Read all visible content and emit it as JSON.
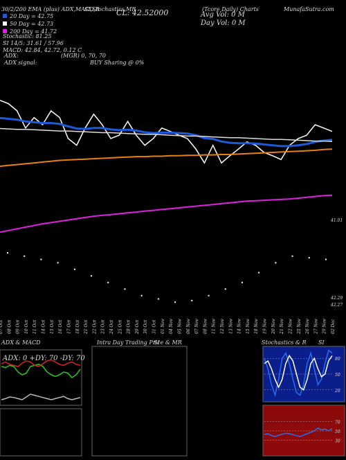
{
  "header": {
    "top_left": "30/2/200 EMA (plus) ADX,MACD,R",
    "top_mid": "SI,Stochastics,MR",
    "cl": "CL: 42.52000",
    "top_right": "(Tcore Daily) Charts",
    "site": "MunafaSutra.com",
    "avg_vol": "Avg Vol: 0  M",
    "day_vol": "Day Vol: 0  M",
    "price_labels": [
      "41.01",
      "42.29",
      "42.27"
    ]
  },
  "legend": [
    {
      "text": "20 Day = 42.75",
      "color": "#1a5adb"
    },
    {
      "text": "50 Day = 42.73",
      "color": "#ffffff"
    },
    {
      "text": "200 Day = 41.72",
      "color": "#e020e0"
    }
  ],
  "info": [
    "Stochastic: 81.25",
    "SI 14/5: 31.61 / 57.96",
    "MACD: 42.84, 42.72, 0.12 C"
  ],
  "adx_labels": [
    "ADX:",
    "ADX  signal:"
  ],
  "adx_mid": "(MGR) 0, 70, 70",
  "buy": "BUY Sharing @ 0%",
  "chart_data": [
    {
      "type": "line",
      "categories": [
        "07 Oct",
        "08 Oct",
        "09 Oct",
        "10 Oct",
        "11 Oct",
        "14 Oct",
        "15 Oct",
        "16 Oct",
        "17 Oct",
        "18 Oct",
        "21 Oct",
        "22 Oct",
        "23 Oct",
        "24 Oct",
        "25 Oct",
        "28 Oct",
        "29 Oct",
        "30 Oct",
        "31 Oct",
        "01 Nov",
        "04 Nov",
        "05 Nov",
        "06 Nov",
        "07 Nov",
        "08 Nov",
        "11 Nov",
        "12 Nov",
        "13 Nov",
        "14 Nov",
        "15 Nov",
        "18 Nov",
        "19 Nov",
        "20 Nov",
        "21 Nov",
        "22 Nov",
        "25 Nov",
        "26 Nov",
        "27 Nov",
        "29 Nov",
        "02 Dec"
      ],
      "ylim": [
        40.5,
        43.8
      ],
      "series": [
        {
          "name": "Close",
          "color": "#ffffff",
          "values": [
            43.72,
            43.64,
            43.47,
            43.06,
            43.31,
            43.14,
            43.47,
            43.31,
            42.81,
            42.65,
            43.06,
            43.39,
            43.14,
            42.81,
            42.89,
            43.22,
            42.89,
            42.65,
            42.81,
            43.06,
            42.98,
            42.89,
            42.81,
            42.56,
            42.23,
            42.65,
            42.23,
            42.4,
            42.56,
            42.73,
            42.65,
            42.48,
            42.4,
            42.31,
            42.65,
            42.81,
            42.89,
            43.14,
            43.06,
            42.98
          ]
        },
        {
          "name": "EMA 20",
          "color": "#1a5adb",
          "values": [
            43.3,
            43.28,
            43.26,
            43.22,
            43.2,
            43.18,
            43.18,
            43.16,
            43.1,
            43.05,
            43.04,
            43.06,
            43.06,
            43.03,
            43.01,
            43.02,
            43,
            42.96,
            42.94,
            42.95,
            42.95,
            42.94,
            42.93,
            42.89,
            42.82,
            42.8,
            42.74,
            42.71,
            42.7,
            42.7,
            42.69,
            42.67,
            42.65,
            42.63,
            42.63,
            42.65,
            42.68,
            42.73,
            42.76,
            42.78
          ]
        },
        {
          "name": "EMA 50",
          "color": "#dddddd",
          "values": [
            43.05,
            43.04,
            43.03,
            43.03,
            43.02,
            43.01,
            43,
            42.99,
            42.99,
            42.98,
            42.97,
            42.96,
            42.95,
            42.95,
            42.94,
            42.93,
            42.92,
            42.91,
            42.91,
            42.9,
            42.89,
            42.88,
            42.87,
            42.87,
            42.86,
            42.85,
            42.84,
            42.83,
            42.83,
            42.82,
            42.81,
            42.8,
            42.79,
            42.79,
            42.78,
            42.77,
            42.76,
            42.75,
            42.75,
            42.74
          ]
        },
        {
          "name": "EMA 100",
          "color": "#e8820c",
          "values": [
            42.15,
            42.17,
            42.19,
            42.21,
            42.23,
            42.25,
            42.27,
            42.29,
            42.3,
            42.31,
            42.32,
            42.33,
            42.34,
            42.35,
            42.36,
            42.37,
            42.38,
            42.38,
            42.39,
            42.39,
            42.4,
            42.4,
            42.41,
            42.41,
            42.42,
            42.42,
            42.43,
            42.43,
            42.44,
            42.45,
            42.46,
            42.47,
            42.48,
            42.49,
            42.5,
            42.51,
            42.52,
            42.53,
            42.55,
            42.56
          ]
        },
        {
          "name": "EMA 200",
          "color": "#e020e0",
          "values": [
            40.58,
            40.62,
            40.66,
            40.7,
            40.74,
            40.78,
            40.81,
            40.84,
            40.87,
            40.9,
            40.93,
            40.96,
            40.98,
            41,
            41.02,
            41.04,
            41.06,
            41.08,
            41.1,
            41.12,
            41.14,
            41.16,
            41.18,
            41.2,
            41.22,
            41.24,
            41.26,
            41.28,
            41.3,
            41.32,
            41.33,
            41.34,
            41.35,
            41.36,
            41.37,
            41.39,
            41.41,
            41.43,
            41.45,
            41.46
          ]
        }
      ]
    },
    {
      "type": "dots",
      "ylim": [
        -1,
        1
      ],
      "series": [
        {
          "name": "MACD",
          "color": "#ffffff",
          "values": [
            0.6,
            0.5,
            0.4,
            0.3,
            0.1,
            -0.1,
            -0.3,
            -0.5,
            -0.7,
            -0.8,
            -0.9,
            -0.85,
            -0.7,
            -0.5,
            -0.3,
            0,
            0.3,
            0.5,
            0.45,
            0.4
          ]
        }
      ]
    },
    {
      "type": "line",
      "title": "ADX  & MACD",
      "label": "ADX: 0  +DY: 70  -DY: 70",
      "ylim": [
        0,
        100
      ],
      "series": [
        {
          "name": "+DY",
          "color": "#22cc22",
          "values": [
            70,
            68,
            72,
            70,
            60,
            55,
            58,
            70,
            72,
            74,
            70,
            60,
            55,
            52,
            55,
            60,
            58,
            50,
            55,
            65
          ]
        },
        {
          "name": "-DY",
          "color": "#dd2222",
          "values": [
            75,
            78,
            74,
            72,
            70,
            76,
            80,
            78,
            72,
            70,
            75,
            80,
            82,
            78,
            74,
            72,
            76,
            78,
            74,
            72
          ]
        },
        {
          "name": "ADX",
          "color": "#bbbbbb",
          "values": [
            10,
            12,
            15,
            14,
            12,
            10,
            15,
            20,
            18,
            16,
            14,
            12,
            10,
            12,
            14,
            16,
            12,
            10,
            12,
            14
          ]
        }
      ]
    },
    {
      "type": "line",
      "title": "Stochastics & R",
      "title2": "SI",
      "ylim": [
        0,
        100
      ],
      "yticks": [
        20,
        50,
        80
      ],
      "series": [
        {
          "name": "Stochastic",
          "color": "#2a6cf0",
          "values": [
            80,
            60,
            30,
            10,
            40,
            80,
            90,
            70,
            40,
            15,
            10,
            30,
            70,
            90,
            60,
            30,
            40,
            70,
            95,
            90
          ]
        },
        {
          "name": "Signal",
          "color": "#ffffff",
          "values": [
            70,
            75,
            60,
            40,
            25,
            40,
            70,
            85,
            75,
            50,
            25,
            20,
            40,
            70,
            80,
            60,
            45,
            50,
            75,
            85
          ]
        }
      ]
    },
    {
      "type": "line",
      "ylim": [
        0,
        100
      ],
      "yticks": [
        30,
        50,
        70
      ],
      "series": [
        {
          "name": "RSI",
          "color": "#2a6cf0",
          "values": [
            42,
            44,
            40,
            38,
            41,
            43,
            45,
            44,
            42,
            40,
            38,
            41,
            44,
            47,
            50,
            56,
            52,
            54,
            50,
            55
          ]
        }
      ]
    },
    {
      "type": "empty",
      "title": "Intra  Day Trading Price  & MR",
      "title2": "SI"
    }
  ]
}
